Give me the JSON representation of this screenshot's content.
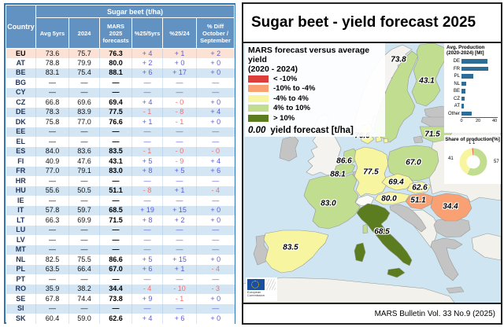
{
  "table": {
    "country_header": "Country",
    "group_header": "Sugar beet (t/ha)",
    "columns": [
      "Avg 5yrs",
      "2024",
      "MARS 2025 forecasts",
      "%25/5yrs",
      "%25/24",
      "% Diff October / September"
    ],
    "rows": [
      {
        "c": "EU",
        "v": [
          "73.6",
          "75.7",
          "76.3",
          "+ 4",
          "+ 1",
          "+ 2"
        ],
        "hl": true
      },
      {
        "c": "AT",
        "v": [
          "78.8",
          "79.9",
          "80.0",
          "+ 2",
          "+ 0",
          "+ 0"
        ]
      },
      {
        "c": "BE",
        "v": [
          "83.1",
          "75.4",
          "88.1",
          "+ 6",
          "+ 17",
          "+ 0"
        ]
      },
      {
        "c": "BG",
        "v": [
          "—",
          "—",
          "—",
          "—",
          "—",
          "—"
        ]
      },
      {
        "c": "CY",
        "v": [
          "—",
          "—",
          "—",
          "—",
          "—",
          "—"
        ]
      },
      {
        "c": "CZ",
        "v": [
          "66.8",
          "69.6",
          "69.4",
          "+ 4",
          "- 0",
          "+ 0"
        ]
      },
      {
        "c": "DE",
        "v": [
          "78.3",
          "83.9",
          "77.5",
          "- 1",
          "- 8",
          "+ 4"
        ]
      },
      {
        "c": "DK",
        "v": [
          "75.8",
          "77.0",
          "76.6",
          "+ 1",
          "- 1",
          "+ 0"
        ]
      },
      {
        "c": "EE",
        "v": [
          "—",
          "—",
          "—",
          "—",
          "—",
          "—"
        ]
      },
      {
        "c": "EL",
        "v": [
          "—",
          "—",
          "—",
          "—",
          "—",
          "—"
        ]
      },
      {
        "c": "ES",
        "v": [
          "84.0",
          "83.6",
          "83.5",
          "- 1",
          "- 0",
          "- 0"
        ]
      },
      {
        "c": "FI",
        "v": [
          "40.9",
          "47.6",
          "43.1",
          "+ 5",
          "- 9",
          "+ 4"
        ]
      },
      {
        "c": "FR",
        "v": [
          "77.0",
          "79.1",
          "83.0",
          "+ 8",
          "+ 5",
          "+ 6"
        ]
      },
      {
        "c": "HR",
        "v": [
          "—",
          "—",
          "—",
          "—",
          "—",
          "—"
        ]
      },
      {
        "c": "HU",
        "v": [
          "55.6",
          "50.5",
          "51.1",
          "- 8",
          "+ 1",
          "- 4"
        ]
      },
      {
        "c": "IE",
        "v": [
          "—",
          "—",
          "—",
          "—",
          "—",
          "—"
        ]
      },
      {
        "c": "IT",
        "v": [
          "57.8",
          "59.7",
          "68.5",
          "+ 19",
          "+ 15",
          "+ 0"
        ]
      },
      {
        "c": "LT",
        "v": [
          "66.3",
          "69.9",
          "71.5",
          "+ 8",
          "+ 2",
          "+ 0"
        ]
      },
      {
        "c": "LU",
        "v": [
          "—",
          "—",
          "—",
          "—",
          "—",
          "—"
        ]
      },
      {
        "c": "LV",
        "v": [
          "—",
          "—",
          "—",
          "—",
          "—",
          "—"
        ]
      },
      {
        "c": "MT",
        "v": [
          "—",
          "—",
          "—",
          "—",
          "—",
          "—"
        ]
      },
      {
        "c": "NL",
        "v": [
          "82.5",
          "75.5",
          "86.6",
          "+ 5",
          "+ 15",
          "+ 0"
        ]
      },
      {
        "c": "PL",
        "v": [
          "63.5",
          "66.4",
          "67.0",
          "+ 6",
          "+ 1",
          "- 4"
        ]
      },
      {
        "c": "PT",
        "v": [
          "—",
          "—",
          "—",
          "—",
          "—",
          "—"
        ]
      },
      {
        "c": "RO",
        "v": [
          "35.9",
          "38.2",
          "34.4",
          "- 4",
          "- 10",
          "- 3"
        ]
      },
      {
        "c": "SE",
        "v": [
          "67.8",
          "74.4",
          "73.8",
          "+ 9",
          "- 1",
          "+ 0"
        ]
      },
      {
        "c": "SI",
        "v": [
          "—",
          "—",
          "—",
          "—",
          "—",
          "—"
        ]
      },
      {
        "c": "SK",
        "v": [
          "60.4",
          "59.0",
          "62.6",
          "+ 4",
          "+ 6",
          "+ 0"
        ]
      }
    ]
  },
  "map": {
    "title": "Sugar beet - yield forecast 2025",
    "footer": "MARS Bulletin Vol. 33 No.9 (2025)",
    "legend": {
      "title_line1": "MARS forecast versus average yield",
      "title_line2": "(2020 - 2024)",
      "classes": [
        {
          "label": "< -10%",
          "color": "#dd3d3b"
        },
        {
          "label": "-10% to -4%",
          "color": "#f9a173"
        },
        {
          "label": "-4% to 4%",
          "color": "#f7f5a0"
        },
        {
          "label": "4% to 10%",
          "color": "#c0dd90"
        },
        {
          "label": "> 10%",
          "color": "#5c7d1f"
        }
      ],
      "value_example": "0.00",
      "value_label": "yield forecast [t/ha]"
    },
    "labels": [
      {
        "country": "SE",
        "value": "73.8"
      },
      {
        "country": "FI",
        "value": "43.1"
      },
      {
        "country": "DK",
        "value": "76.6"
      },
      {
        "country": "LT",
        "value": "71.5"
      },
      {
        "country": "NL",
        "value": "86.6"
      },
      {
        "country": "BE",
        "value": "88.1"
      },
      {
        "country": "DE",
        "value": "77.5"
      },
      {
        "country": "PL",
        "value": "67.0"
      },
      {
        "country": "CZ",
        "value": "69.4"
      },
      {
        "country": "SK",
        "value": "62.6"
      },
      {
        "country": "AT",
        "value": "80.0"
      },
      {
        "country": "HU",
        "value": "51.1"
      },
      {
        "country": "RO",
        "value": "34.4"
      },
      {
        "country": "FR",
        "value": "83.0"
      },
      {
        "country": "IT",
        "value": "68.5"
      },
      {
        "country": "ES",
        "value": "83.5"
      }
    ],
    "logo_text": "European Commission"
  },
  "chart_data": [
    {
      "type": "table",
      "title": "Sugar beet (t/ha)",
      "columns": [
        "Country",
        "Avg 5yrs",
        "2024",
        "MARS 2025 forecasts",
        "%25/5yrs",
        "%25/24",
        "% Diff October / September"
      ],
      "note": "rows provided in table.rows"
    },
    {
      "type": "bar",
      "orientation": "horizontal",
      "title": "Avg. Production (2020-2024) [Mt]",
      "categories": [
        "DE",
        "FR",
        "PL",
        "NL",
        "BE",
        "CZ",
        "AT",
        "Other"
      ],
      "values": [
        31,
        32,
        14,
        6,
        5,
        4,
        3,
        12
      ],
      "xlim": [
        0,
        44
      ],
      "ticks": [
        0,
        20,
        40
      ],
      "bar_color": "#2e6e96"
    },
    {
      "type": "pie",
      "title": "Share of production[%]",
      "slices": [
        {
          "label": "57",
          "value": 57,
          "color": "#c0dd90"
        },
        {
          "label": "41",
          "value": 41,
          "color": "#f7f5a0"
        },
        {
          "label": "1",
          "value": 1,
          "color": "#dd3d3b"
        },
        {
          "label": "1",
          "value": 1,
          "color": "#f9a173"
        }
      ],
      "donut": true
    },
    {
      "type": "heatmap",
      "title": "MARS forecast versus average yield (2020 - 2024), choropleth",
      "classes": [
        "< -10%",
        "-10% to -4%",
        "-4% to 4%",
        "4% to 10%",
        "> 10%"
      ],
      "countries": {
        "SE": {
          "value": 73.8,
          "class": "4% to 10%"
        },
        "FI": {
          "value": 43.1,
          "class": "4% to 10%"
        },
        "DK": {
          "value": 76.6,
          "class": "-4% to 4%"
        },
        "LT": {
          "value": 71.5,
          "class": "4% to 10%"
        },
        "NL": {
          "value": 86.6,
          "class": "4% to 10%"
        },
        "BE": {
          "value": 88.1,
          "class": "4% to 10%"
        },
        "DE": {
          "value": 77.5,
          "class": "-4% to 4%"
        },
        "PL": {
          "value": 67.0,
          "class": "4% to 10%"
        },
        "CZ": {
          "value": 69.4,
          "class": "-4% to 4%"
        },
        "SK": {
          "value": 62.6,
          "class": "-4% to 4%"
        },
        "AT": {
          "value": 80.0,
          "class": "-4% to 4%"
        },
        "HU": {
          "value": 51.1,
          "class": "-10% to -4%"
        },
        "RO": {
          "value": 34.4,
          "class": "-10% to -4%"
        },
        "FR": {
          "value": 83.0,
          "class": "4% to 10%"
        },
        "IT": {
          "value": 68.5,
          "class": "> 10%"
        },
        "ES": {
          "value": 83.5,
          "class": "-4% to 4%"
        }
      }
    }
  ]
}
